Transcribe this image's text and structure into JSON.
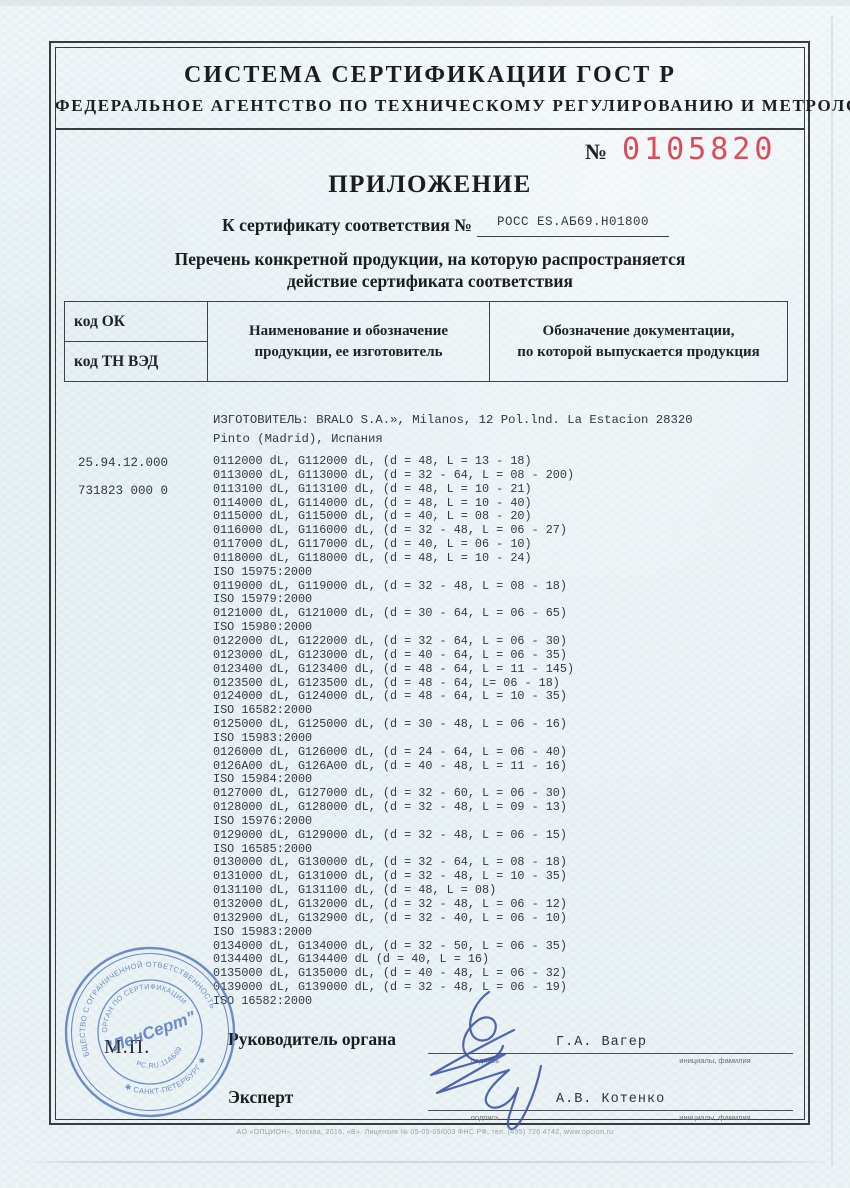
{
  "colors": {
    "number_red": "#df4a58",
    "stamp_blue": "#5b7ec2",
    "signature_ink": "#3d55a8"
  },
  "header": {
    "system_title": "СИСТЕМА СЕРТИФИКАЦИИ ГОСТ Р",
    "agency": "ФЕДЕРАЛЬНОЕ АГЕНТСТВО ПО ТЕХНИЧЕСКОМУ РЕГУЛИРОВАНИЮ И МЕТРОЛОГИИ",
    "number_label": "№",
    "number": "0105820"
  },
  "body": {
    "title": "ПРИЛОЖЕНИЕ",
    "cert_label": "К сертификату соответствия №",
    "cert_number": "РОСС ES.АБ69.Н01800",
    "subtitle": "Перечень конкретной продукции,  на которую распространяется\nдействие сертификата соответствия"
  },
  "table": {
    "col_ok": "код ОК",
    "col_tnved": "код ТН ВЭД",
    "col_name": "Наименование и обозначение\nпродукции, ее изготовитель",
    "col_doc": "Обозначение документации,\nпо которой выпускается продукция"
  },
  "codes": {
    "ok": "25.94.12.000",
    "tnved": "731823 000 0"
  },
  "manufacturer": "ИЗГОТОВИТЕЛЬ: BRALO S.A.», Milanos, 12 Pol.lnd. La Estacion 28320\nPinto (Madrid), Испания",
  "products": [
    "0112000 dL, G112000 dL, (d = 48, L = 13 - 18)",
    "0113000 dL, G113000 dL, (d = 32 - 64, L = 08 - 200)",
    "0113100 dL, G113100 dL, (d = 48, L = 10 - 21)",
    "0114000 dL, G114000 dL, (d = 48, L = 10 - 40)",
    "0115000 dL, G115000 dL, (d = 40, L = 08 - 20)",
    "0116000 dL, G116000 dL, (d = 32 - 48, L = 06 - 27)",
    "0117000 dL, G117000 dL, (d = 40, L = 06 - 10)",
    "0118000 dL, G118000 dL, (d = 48, L = 10 - 24)",
    "ISO 15975:2000",
    "0119000 dL, G119000 dL, (d = 32 - 48, L = 08 - 18)",
    "ISO 15979:2000",
    "0121000 dL, G121000 dL, (d = 30 - 64, L = 06 - 65)",
    "ISO 15980:2000",
    "0122000 dL, G122000 dL, (d = 32 - 64, L = 06 - 30)",
    "0123000 dL, G123000 dL, (d = 40 - 64, L = 06 - 35)",
    "0123400 dL, G123400 dL, (d = 48 - 64, L = 11 - 145)",
    "0123500 dL, G123500 dL, (d = 48 - 64, L= 06 - 18)",
    "0124000 dL, G124000 dL, (d = 48 - 64, L = 10 - 35)",
    "ISO 16582:2000",
    "0125000 dL, G125000 dL, (d = 30 - 48, L = 06 - 16)",
    "ISO 15983:2000",
    "0126000 dL, G126000 dL, (d = 24 - 64, L = 06 - 40)",
    "0126A00 dL, G126A00 dL, (d = 40 - 48, L = 11 - 16)",
    "ISO 15984:2000",
    "0127000 dL, G127000 dL, (d = 32 - 60, L = 06 - 30)",
    "0128000 dL, G128000 dL, (d = 32 - 48, L = 09 - 13)",
    "ISO 15976:2000",
    "0129000 dL, G129000 dL, (d = 32 - 48, L = 06 - 15)",
    "ISO 16585:2000",
    "0130000 dL, G130000 dL, (d = 32 - 64, L = 08 - 18)",
    "0131000 dL, G131000 dL, (d = 32 - 48, L = 10 - 35)",
    "0131100 dL, G131100 dL, (d = 48, L = 08)",
    "0132000 dL, G132000 dL, (d = 32 - 48, L = 06 - 12)",
    "0132900 dL, G132900 dL, (d = 32 - 40, L = 06 - 10)",
    "ISO 15983:2000",
    "0134000 dL, G134000 dL, (d = 32 - 50, L = 06 - 35)",
    "0134400 dL, G134400 dL (d = 40, L = 16)",
    "0135000 dL, G135000 dL, (d = 40 - 48, L = 06 - 32)",
    "0139000 dL, G139000 dL, (d = 32 - 48, L = 06 - 19)",
    "ISO 16582:2000"
  ],
  "signatures": {
    "role1": "Руководитель органа",
    "name1": "Г.А. Вагер",
    "role2": "Эксперт",
    "name2": "А.В. Котенко",
    "sign_caption": "подпись",
    "name_caption": "инициалы, фамилия",
    "mp": "М.П."
  },
  "stamp": {
    "outer_top": "ОБЩЕСТВО С ОГРАНИЧЕННОЙ ОТВЕТСТВЕННОСТЬЮ",
    "outer_bottom": "✱ САНКТ-ПЕТЕРБУРГ ✱",
    "inner_top": "ОРГАН ПО СЕРТИФИКАЦИИ",
    "center": "\"ЛенСерт\"",
    "inner_bottom": "РС.RU.11АБ69"
  },
  "footer": "АО «ОПЦИОН», Москва, 2016, «В».   Лицензия № 05-05-09/003 ФНС РФ, тел. (495) 726 4742, www.opcion.ru"
}
